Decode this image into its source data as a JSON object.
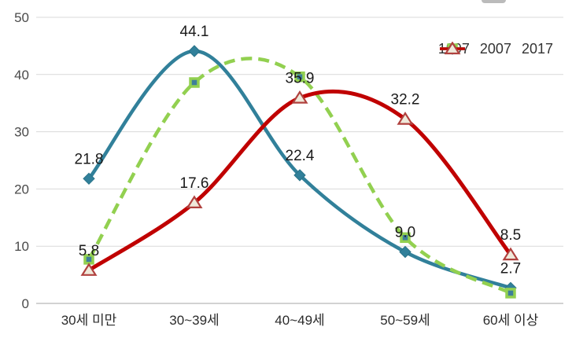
{
  "chart_data": {
    "type": "line",
    "title": "",
    "subtitle": "",
    "categories": [
      "30세 미만",
      "30~39세",
      "40~49세",
      "50~59세",
      "60세 이상"
    ],
    "ylim": [
      0,
      50
    ],
    "yticks": [
      "0",
      "10",
      "20",
      "30",
      "40",
      "50"
    ],
    "grid": "horizontal",
    "line_style": "smooth",
    "legend_position": "top-right",
    "series": [
      {
        "name": "1997",
        "color": "#31809A",
        "dash": "solid",
        "marker": "diamond",
        "values": [
          21.8,
          44.1,
          22.4,
          9.0,
          2.7
        ],
        "data_labels": [
          "21.8",
          "44.1",
          "22.4",
          "9.0",
          "2.7"
        ]
      },
      {
        "name": "2007",
        "color": "#92D050",
        "dash": "dashed",
        "marker": "square",
        "values": [
          7.7,
          38.6,
          39.6,
          11.5,
          1.8
        ],
        "data_labels": [
          "",
          "",
          "",
          "",
          ""
        ]
      },
      {
        "name": "2017",
        "color": "#C00000",
        "dash": "solid",
        "marker": "triangle-up",
        "values": [
          5.8,
          17.6,
          35.9,
          32.2,
          8.5
        ],
        "data_labels": [
          "5.8",
          "17.6",
          "35.9",
          "32.2",
          "8.5"
        ]
      }
    ]
  },
  "colors": {
    "background": "#FFFFFF",
    "gridline": "#D9D9D9",
    "axis_line": "#B8B8B8",
    "tick_text": "#4A4A4A",
    "category_text": "#2B2B2B",
    "data_label_text": "#1A1A1A",
    "legend_text": "#333333",
    "series_1997": "#31809A",
    "series_2007": "#92D050",
    "series_2017": "#C00000",
    "triangle_fill": "#EFE9DA",
    "triangle_stroke": "#B0413E",
    "square_inner_fill": "#3D7E9A"
  }
}
